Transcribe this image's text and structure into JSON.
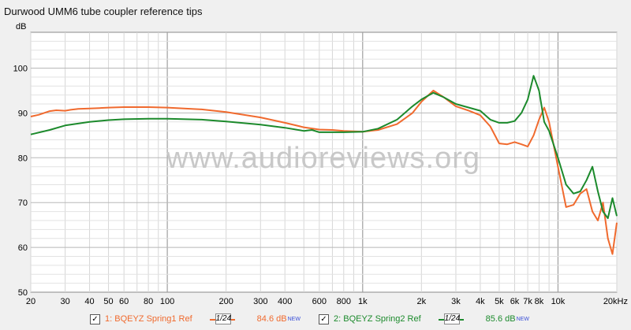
{
  "title": "Durwood UMM6 tube coupler reference tips",
  "watermark": "www.audioreviews.org",
  "chart_data": {
    "type": "line",
    "title": "Durwood UMM6 tube coupler reference tips",
    "xlabel": "",
    "ylabel": "dB",
    "xscale": "log",
    "xlim": [
      20,
      20000
    ],
    "ylim": [
      50,
      108
    ],
    "grid": true,
    "x_ticks": [
      {
        "v": 20,
        "label": "20"
      },
      {
        "v": 30,
        "label": "30"
      },
      {
        "v": 40,
        "label": "40"
      },
      {
        "v": 50,
        "label": "50"
      },
      {
        "v": 60,
        "label": "60"
      },
      {
        "v": 80,
        "label": "80"
      },
      {
        "v": 100,
        "label": "100"
      },
      {
        "v": 200,
        "label": "200"
      },
      {
        "v": 300,
        "label": "300"
      },
      {
        "v": 400,
        "label": "400"
      },
      {
        "v": 600,
        "label": "600"
      },
      {
        "v": 800,
        "label": "800"
      },
      {
        "v": 1000,
        "label": "1k"
      },
      {
        "v": 2000,
        "label": "2k"
      },
      {
        "v": 3000,
        "label": "3k"
      },
      {
        "v": 4000,
        "label": "4k"
      },
      {
        "v": 5000,
        "label": "5k"
      },
      {
        "v": 6000,
        "label": "6k"
      },
      {
        "v": 7000,
        "label": "7k"
      },
      {
        "v": 8000,
        "label": "8k"
      },
      {
        "v": 10000,
        "label": "10k"
      },
      {
        "v": 20000,
        "label": "20kHz"
      }
    ],
    "y_ticks": [
      50,
      60,
      70,
      80,
      90,
      100
    ],
    "series": [
      {
        "name": "1: BQEYZ Spring1 Ref",
        "color": "#f06a2e",
        "level": "84.6 dB",
        "x": [
          20,
          22,
          25,
          27,
          30,
          32,
          35,
          40,
          45,
          50,
          60,
          70,
          80,
          100,
          150,
          200,
          300,
          400,
          500,
          600,
          700,
          800,
          1000,
          1200,
          1500,
          1800,
          2000,
          2300,
          2600,
          3000,
          3500,
          4000,
          4500,
          5000,
          5500,
          6000,
          6500,
          7000,
          7500,
          8000,
          8500,
          9000,
          10000,
          11000,
          12000,
          13000,
          14000,
          15000,
          16000,
          17000,
          18000,
          19000,
          20000
        ],
        "y": [
          89.2,
          89.6,
          90.4,
          90.6,
          90.5,
          90.7,
          90.9,
          91.0,
          91.1,
          91.2,
          91.3,
          91.3,
          91.3,
          91.2,
          90.8,
          90.2,
          89.0,
          87.8,
          86.8,
          86.3,
          86.2,
          86.0,
          85.8,
          86.2,
          87.5,
          90.0,
          92.5,
          95.0,
          93.5,
          91.5,
          90.5,
          89.5,
          87.0,
          83.2,
          83.0,
          83.5,
          83.0,
          82.5,
          85.0,
          88.5,
          91.2,
          88.0,
          78.0,
          69.0,
          69.5,
          72.0,
          73.0,
          68.0,
          66.0,
          70.0,
          62.0,
          58.5,
          65.5
        ]
      },
      {
        "name": "2: BQEYZ Spring2 Ref",
        "color": "#1c8a2c",
        "level": "85.6 dB",
        "x": [
          20,
          25,
          30,
          40,
          50,
          60,
          80,
          100,
          150,
          200,
          300,
          400,
          500,
          550,
          600,
          700,
          800,
          1000,
          1200,
          1500,
          1800,
          2000,
          2300,
          2600,
          3000,
          3500,
          4000,
          4500,
          5000,
          5500,
          6000,
          6500,
          7000,
          7500,
          8000,
          8500,
          9000,
          10000,
          11000,
          12000,
          13000,
          14000,
          15000,
          16000,
          17000,
          18000,
          19000,
          20000
        ],
        "y": [
          85.2,
          86.2,
          87.2,
          88.0,
          88.4,
          88.6,
          88.7,
          88.7,
          88.5,
          88.1,
          87.4,
          86.7,
          86.0,
          86.2,
          85.7,
          85.7,
          85.7,
          85.8,
          86.5,
          88.5,
          91.5,
          93.0,
          94.5,
          93.5,
          92.0,
          91.2,
          90.5,
          88.5,
          87.8,
          87.8,
          88.2,
          90.0,
          93.0,
          98.3,
          95.0,
          88.0,
          86.0,
          80.0,
          74.0,
          72.0,
          72.5,
          75.0,
          78.0,
          72.5,
          68.0,
          66.5,
          71.0,
          67.0
        ]
      }
    ]
  },
  "legend": {
    "items": [
      {
        "checkbox": "✓",
        "label": "1: BQEYZ Spring1 Ref",
        "smoothing": "1/24",
        "level": "84.6 dB",
        "badge": "NEW",
        "color": "#f06a2e"
      },
      {
        "checkbox": "✓",
        "label": "2: BQEYZ Spring2 Ref",
        "smoothing": "1/24",
        "level": "85.6 dB",
        "badge": "NEW",
        "color": "#1c8a2c"
      }
    ]
  }
}
